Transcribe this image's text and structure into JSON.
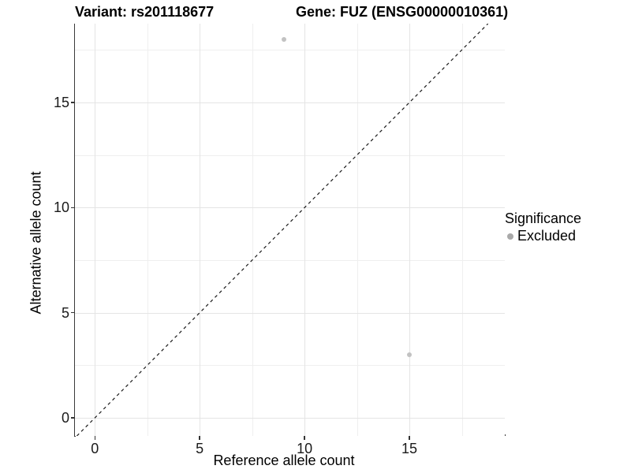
{
  "chart_data": {
    "type": "scatter",
    "title_left": "Variant: rs201118677",
    "title_right": "Gene: FUZ (ENSG00000010361)",
    "xlabel": "Reference allele count",
    "ylabel": "Alternative allele count",
    "xlim": [
      -0.95,
      19.55
    ],
    "ylim": [
      -0.86,
      18.75
    ],
    "x_major_ticks": [
      0,
      5,
      10,
      15
    ],
    "y_major_ticks": [
      0,
      5,
      10,
      15
    ],
    "x_minor_ticks": [
      2.5,
      7.5,
      12.5,
      17.5
    ],
    "y_minor_ticks": [
      2.5,
      7.5,
      12.5,
      17.5
    ],
    "grid": "major-and-minor",
    "points": [
      {
        "x": 9,
        "y": 18,
        "series": "Excluded"
      },
      {
        "x": 15,
        "y": 3,
        "series": "Excluded"
      }
    ],
    "abline": {
      "slope": 1,
      "intercept": 0,
      "style": "dashed",
      "color": "#1a1a1a"
    },
    "legend": {
      "position": "right",
      "title": "Significance",
      "items": [
        {
          "label": "Excluded",
          "color": "#a9a9a9"
        }
      ]
    },
    "colors": {
      "point": "#c2c2c2",
      "grid_major": "#e4e4e4",
      "grid_minor": "#efefef",
      "axis_line": "#3a3a3a",
      "background": "#ffffff"
    }
  }
}
